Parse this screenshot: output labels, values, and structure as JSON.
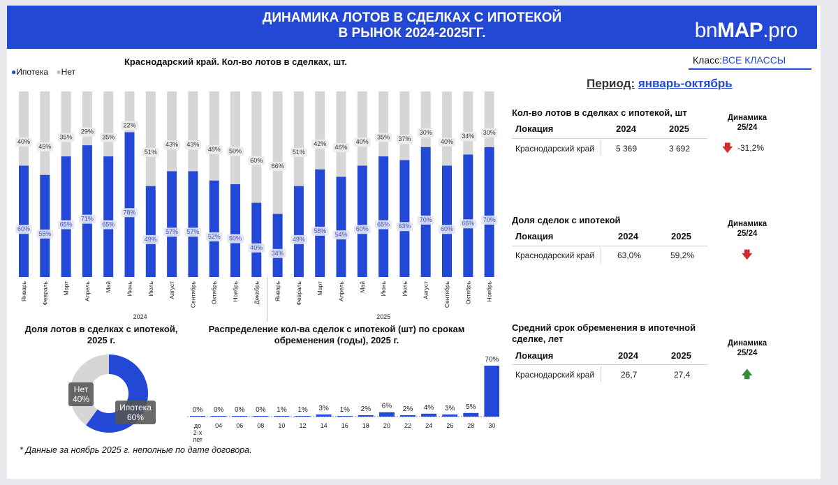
{
  "header": {
    "title": "ДИНАМИКА  ЛОТОВ В СДЕЛКАХ С ИПОТЕКОЙ\nВ РЫНОК 2024-2025ГГ.",
    "logo_prefix": "bn",
    "logo_bold": "MAP",
    "logo_suffix": ".pro"
  },
  "filters": {
    "class_label": "Класс:",
    "class_value": "ВСЕ КЛАССЫ",
    "period_label": "Период:",
    "period_value": "январь-октябрь"
  },
  "colors": {
    "mortgage": "#2348d6",
    "no_mortgage": "#d6d6d6",
    "up": "#3a8a3a",
    "down": "#d22b2b"
  },
  "chart_data": [
    {
      "type": "bar",
      "stacked": true,
      "percent": true,
      "title": "Краснодарский край. Кол-во лотов в сделках, шт.",
      "legend": [
        "Ипотека",
        "Нет"
      ],
      "legend_position": "top-left",
      "groups": [
        {
          "name": "2024",
          "categories": [
            "Январь",
            "Февраль",
            "Март",
            "Апрель",
            "Май",
            "Июнь",
            "Июль",
            "Август",
            "Сентябрь",
            "Октябрь",
            "Ноябрь",
            "Декабрь"
          ]
        },
        {
          "name": "2025",
          "categories": [
            "Январь",
            "Февраль",
            "Март",
            "Апрель",
            "Май",
            "Июнь",
            "Июль",
            "Август",
            "Сентябрь",
            "Октябрь",
            "Ноябрь"
          ]
        }
      ],
      "series": [
        {
          "name": "Ипотека",
          "values": [
            60,
            55,
            65,
            71,
            65,
            78,
            49,
            57,
            57,
            52,
            50,
            40,
            34,
            49,
            58,
            54,
            60,
            65,
            63,
            70,
            60,
            66,
            70
          ]
        },
        {
          "name": "Нет",
          "values": [
            40,
            45,
            35,
            29,
            35,
            22,
            51,
            43,
            43,
            48,
            50,
            60,
            66,
            51,
            42,
            46,
            40,
            35,
            37,
            30,
            40,
            34,
            30
          ]
        }
      ],
      "ylim": [
        0,
        100
      ]
    },
    {
      "type": "pie",
      "title": "Доля лотов в сделках с ипотекой,\n2025 г.",
      "slices": [
        {
          "label": "Ипотека",
          "value": 60,
          "display": "60%"
        },
        {
          "label": "Нет",
          "value": 40,
          "display": "40%"
        }
      ]
    },
    {
      "type": "bar",
      "title": "Распределение кол-ва сделок с ипотекой (шт) по срокам\nобременения (годы), 2025 г.",
      "categories": [
        "до 2-х лет",
        "04",
        "06",
        "08",
        "10",
        "12",
        "14",
        "16",
        "18",
        "20",
        "22",
        "24",
        "26",
        "28",
        "30"
      ],
      "values": [
        0,
        0,
        0,
        0,
        1,
        1,
        3,
        1,
        2,
        6,
        2,
        4,
        3,
        5,
        70
      ],
      "labels": [
        "0%",
        "0%",
        "0%",
        "0%",
        "1%",
        "1%",
        "3%",
        "1%",
        "2%",
        "6%",
        "2%",
        "4%",
        "3%",
        "5%",
        "70%"
      ],
      "ylim": [
        0,
        70
      ]
    }
  ],
  "tables": [
    {
      "title": "Кол-во лотов в сделках с ипотекой, шт",
      "headers": [
        "Локация",
        "2024",
        "2025"
      ],
      "row": [
        "Краснодарский край",
        "5 369",
        "3 692"
      ],
      "dyn_title": "Динамика\n25/24",
      "dyn_arrow": "🡇",
      "dyn_value": "-31,2%"
    },
    {
      "title": "Доля сделок с ипотекой",
      "headers": [
        "Локация",
        "2024",
        "2025"
      ],
      "row": [
        "Краснодарский край",
        "63,0%",
        "59,2%"
      ],
      "dyn_title": "Динамика\n25/24",
      "dyn_arrow": "🡇",
      "dyn_value": ""
    },
    {
      "title": "Средний срок обременения в ипотечной\nсделке, лет",
      "headers": [
        "Локация",
        "2024",
        "2025"
      ],
      "row": [
        "Краснодарский край",
        "26,7",
        "27,4"
      ],
      "dyn_title": "Динамика\n25/24",
      "dyn_arrow": "🡅",
      "dyn_value": ""
    }
  ],
  "footnote": "* Данные за ноябрь 2025 г. неполные по дате договора."
}
